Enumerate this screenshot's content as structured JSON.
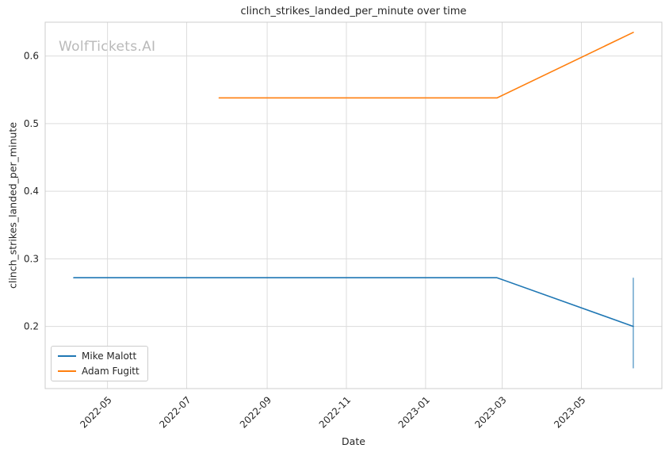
{
  "watermark": "WolfTickets.AI",
  "chart_data": {
    "type": "line",
    "title": "clinch_strikes_landed_per_minute over time",
    "xlabel": "Date",
    "ylabel": "clinch_strikes_landed_per_minute",
    "grid": true,
    "legend_position": "lower left",
    "x_tick_labels": [
      "2022-05",
      "2022-07",
      "2022-09",
      "2022-11",
      "2023-01",
      "2023-03",
      "2023-05"
    ],
    "y_ticks": [
      0.2,
      0.3,
      0.4,
      0.5,
      0.6
    ],
    "x_range": [
      "2022-03-14",
      "2023-07-02"
    ],
    "y_range": [
      0.108,
      0.65
    ],
    "series": [
      {
        "name": "Mike Malott",
        "color": "#1f77b4",
        "points": [
          [
            "2022-04-05",
            0.272
          ],
          [
            "2023-02-25",
            0.272
          ],
          [
            "2023-06-10",
            0.2
          ]
        ]
      },
      {
        "name": "Adam Fugitt",
        "color": "#ff7f0e",
        "points": [
          [
            "2022-07-26",
            0.538
          ],
          [
            "2023-02-25",
            0.538
          ],
          [
            "2023-06-10",
            0.635
          ]
        ]
      }
    ],
    "error_bar": {
      "series": "Mike Malott",
      "x": "2023-06-10",
      "y_low": 0.138,
      "y_high": 0.272,
      "color": "#1f77b4"
    }
  }
}
